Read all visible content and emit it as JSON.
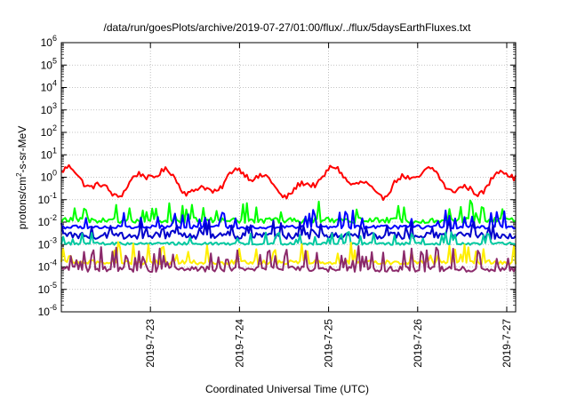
{
  "chart_data": {
    "type": "line",
    "title": "/data/run/goesPlots/archive/2019-07-27/01:00/flux/../flux/5daysEarthFluxes.txt",
    "xlabel": "Coordinated Universal Time (UTC)",
    "ylabel_main": "protons/cm",
    "ylabel_sup": "2",
    "ylabel_rest": "-s-sr-MeV",
    "x_ticks": [
      "2019-7-23",
      "2019-7-24",
      "2019-7-25",
      "2019-7-26",
      "2019-7-27"
    ],
    "x_range_days": [
      0,
      5.1
    ],
    "x_tick_days": [
      1,
      2,
      3,
      4,
      5
    ],
    "y_scale": "log",
    "y_tick_exponents": [
      -6,
      -5,
      -4,
      -3,
      -2,
      -1,
      0,
      1,
      2,
      3,
      4,
      5,
      6
    ],
    "ylim": [
      1e-06,
      1000000.0
    ],
    "grid": true,
    "series": [
      {
        "color": "#ff0000",
        "base": 0.6,
        "noise": 0.12,
        "spike": 0,
        "osc": 0.45,
        "oscPeriod": 1.0,
        "values_desc": "~0.05 to ~3, diurnal oscillation"
      },
      {
        "color": "#00ff00",
        "base": 0.012,
        "noise": 0.12,
        "spike": 0.55,
        "osc": 0,
        "oscPeriod": 1,
        "values_desc": "~1e-2 with spikes to ~5e-2"
      },
      {
        "color": "#0000ff",
        "base": 0.006,
        "noise": 0.08,
        "spike": 0.5,
        "osc": 0,
        "oscPeriod": 1,
        "values_desc": "~5e-3 with spikes"
      },
      {
        "color": "#0000cc",
        "base": 0.0025,
        "noise": 0.15,
        "spike": 0.4,
        "osc": 0,
        "oscPeriod": 1,
        "values_desc": "~2e-3"
      },
      {
        "color": "#00c8a0",
        "base": 0.0011,
        "noise": 0.06,
        "spike": 0.35,
        "osc": 0,
        "oscPeriod": 1,
        "values_desc": "~1e-3"
      },
      {
        "color": "#ffee00",
        "base": 0.00016,
        "noise": 0.1,
        "spike": 0.6,
        "osc": 0,
        "oscPeriod": 1,
        "values_desc": "~1.5e-4 with spikes to ~5e-4"
      },
      {
        "color": "#8b2a6b",
        "base": 8e-05,
        "noise": 0.12,
        "spike": 0.65,
        "osc": 0,
        "oscPeriod": 1,
        "values_desc": "~8e-5 with spikes to ~5e-4"
      }
    ]
  }
}
